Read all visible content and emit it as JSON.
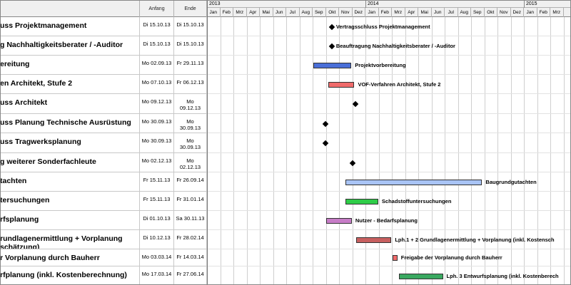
{
  "columns": {
    "start": "Anfang",
    "end": "Ende"
  },
  "years": [
    "2013",
    "2014",
    "2015"
  ],
  "months": [
    "Jan",
    "Feb",
    "Mrz",
    "Apr",
    "Mai",
    "Jun",
    "Jul",
    "Aug",
    "Sep",
    "Okt",
    "Nov",
    "Dez",
    "Jan",
    "Feb",
    "Mrz",
    "Apr",
    "Mai",
    "Jun",
    "Jul",
    "Aug",
    "Sep",
    "Okt",
    "Nov",
    "Dez",
    "Jan",
    "Feb",
    "Mrz"
  ],
  "tasks": [
    {
      "name": "uss Projektmanagement",
      "start": "Di 15.10.13",
      "end": "Di 15.10.13",
      "kind": "milestone",
      "from": "2013-10-15",
      "label": "Vertragsschluss Projektmanagement"
    },
    {
      "name": "g Nachhaltigkeitsberater / -Auditor",
      "start": "Di 15.10.13",
      "end": "Di 15.10.13",
      "kind": "milestone",
      "from": "2013-10-15",
      "label": "Beauftragung Nachhaltigkeitsberater / -Auditor"
    },
    {
      "name": "ereitung",
      "start": "Mo 02.09.13",
      "end": "Fr 29.11.13",
      "kind": "bar",
      "from": "2013-09-02",
      "to": "2013-11-29",
      "color": "#4a6fd8",
      "label": "Projektvorbereitung"
    },
    {
      "name": "en Architekt, Stufe 2",
      "start": "Mo 07.10.13",
      "end": "Fr 06.12.13",
      "kind": "bar",
      "from": "2013-10-07",
      "to": "2013-12-06",
      "color": "#f06b6b",
      "label": "VOF-Verfahren Architekt, Stufe 2"
    },
    {
      "name": "uss Architekt",
      "start": "Mo 09.12.13",
      "end": [
        "Mo",
        "09.12.13"
      ],
      "kind": "milestone",
      "from": "2013-12-09",
      "label": ""
    },
    {
      "name": "uss Planung Technische Ausrüstung",
      "start": "Mo 30.09.13",
      "end": [
        "Mo",
        "30.09.13"
      ],
      "kind": "milestone",
      "from": "2013-09-30",
      "label": ""
    },
    {
      "name": "uss Tragwerksplanung",
      "start": "Mo 30.09.13",
      "end": [
        "Mo",
        "30.09.13"
      ],
      "kind": "milestone",
      "from": "2013-09-30",
      "label": ""
    },
    {
      "name": "g weiterer Sonderfachleute",
      "start": "Mo 02.12.13",
      "end": [
        "Mo",
        "02.12.13"
      ],
      "kind": "milestone",
      "from": "2013-12-02",
      "label": ""
    },
    {
      "name": "tachten",
      "start": "Fr 15.11.13",
      "end": "Fr 26.09.14",
      "kind": "bar",
      "from": "2013-11-15",
      "to": "2014-09-26",
      "color": "#a9c4f5",
      "label": "Baugrundgutachten"
    },
    {
      "name": "tersuchungen",
      "start": "Fr 15.11.13",
      "end": "Fr 31.01.14",
      "kind": "bar",
      "from": "2013-11-15",
      "to": "2014-01-31",
      "color": "#2ecc48",
      "label": "Schadstoffuntersuchungen"
    },
    {
      "name": "rfsplanung",
      "start": "Di 01.10.13",
      "end": "Sa 30.11.13",
      "kind": "bar",
      "from": "2013-10-01",
      "to": "2013-11-30",
      "color": "#c77dc7",
      "label": "Nutzer - Bedarfsplanung"
    },
    {
      "name": [
        "rundlagenermittlung + Vorplanung",
        "schätzung)"
      ],
      "start": "Di 10.12.13",
      "end": "Fr 28.02.14",
      "kind": "bar",
      "from": "2013-12-10",
      "to": "2014-02-28",
      "color": "#c86060",
      "label": "Lph.1 + 2 Grundlagenermittlung + Vorplanung (inkl. Kostensch"
    },
    {
      "name": "r Vorplanung durch Bauherr",
      "start": "Mo 03.03.14",
      "end": "Fr 14.03.14",
      "kind": "bar",
      "from": "2014-03-03",
      "to": "2014-03-14",
      "color": "#f06b6b",
      "label": "Freigabe der Vorplanung durch Bauherr"
    },
    {
      "name": "rfplanung (inkl. Kostenberechnung)",
      "start": "Mo 17.03.14",
      "end": "Fr 27.06.14",
      "kind": "bar",
      "from": "2014-03-17",
      "to": "2014-06-27",
      "color": "#3aa860",
      "label": "Lph. 3 Entwurfsplanung (inkl. Kostenberech"
    }
  ]
}
